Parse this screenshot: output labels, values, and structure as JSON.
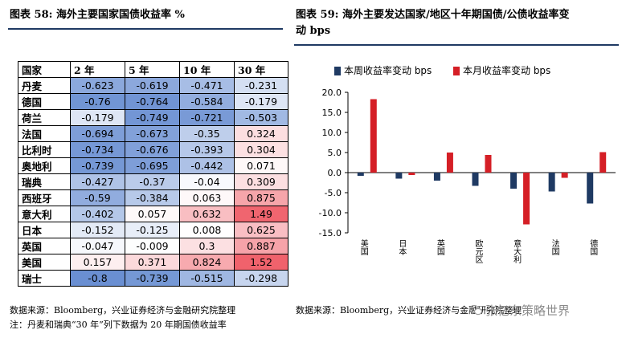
{
  "left_figure": {
    "title": "图表 58:  海外主要国家国债收益率  %",
    "source": "数据来源：Bloomberg，兴业证券经济与金融研究院整理",
    "note": "注：丹麦和瑞典“30 年”列下数据为 20 年期国债收益率"
  },
  "right_figure": {
    "title_line1": "图表 59:  海外主要发达国家/地区十年期国债/公债收益率变",
    "title_line2": "动  bps",
    "source": "数据来源：Bloomberg，兴业证券经济与金融研究院整理",
    "watermark": "张忆东策略世界"
  },
  "colors": {
    "negative_strong": "#6a8fd2",
    "positive_strong": "#f0626c",
    "series_week": "#1f3a63",
    "series_month": "#d51f26"
  },
  "table": {
    "headers": [
      "国家",
      "2 年",
      "5 年",
      "10 年",
      "30 年"
    ],
    "rows": [
      {
        "country": "丹麦",
        "values": [
          "-0.623",
          "-0.619",
          "-0.471",
          "-0.231"
        ],
        "nums": [
          -0.623,
          -0.619,
          -0.471,
          -0.231
        ]
      },
      {
        "country": "德国",
        "values": [
          "-0.76",
          "-0.764",
          "-0.584",
          "-0.179"
        ],
        "nums": [
          -0.76,
          -0.764,
          -0.584,
          -0.179
        ]
      },
      {
        "country": "荷兰",
        "values": [
          "-0.179",
          "-0.749",
          "-0.721",
          "-0.503"
        ],
        "nums": [
          -0.179,
          -0.749,
          -0.721,
          -0.503
        ]
      },
      {
        "country": "法国",
        "values": [
          "-0.694",
          "-0.673",
          "-0.35",
          "0.324"
        ],
        "nums": [
          -0.694,
          -0.673,
          -0.35,
          0.324
        ]
      },
      {
        "country": "比利时",
        "values": [
          "-0.734",
          "-0.676",
          "-0.393",
          "0.304"
        ],
        "nums": [
          -0.734,
          -0.676,
          -0.393,
          0.304
        ]
      },
      {
        "country": "奥地利",
        "values": [
          "-0.739",
          "-0.695",
          "-0.442",
          "0.071"
        ],
        "nums": [
          -0.739,
          -0.695,
          -0.442,
          0.071
        ]
      },
      {
        "country": "瑞典",
        "values": [
          "-0.427",
          "-0.37",
          "-0.04",
          "0.309"
        ],
        "nums": [
          -0.427,
          -0.37,
          -0.04,
          0.309
        ]
      },
      {
        "country": "西班牙",
        "values": [
          "-0.59",
          "-0.384",
          "0.063",
          "0.875"
        ],
        "nums": [
          -0.59,
          -0.384,
          0.063,
          0.875
        ]
      },
      {
        "country": "意大利",
        "values": [
          "-0.402",
          "0.057",
          "0.632",
          "1.49"
        ],
        "nums": [
          -0.402,
          0.057,
          0.632,
          1.49
        ]
      },
      {
        "country": "日本",
        "values": [
          "-0.152",
          "-0.125",
          "0.008",
          "0.625"
        ],
        "nums": [
          -0.152,
          -0.125,
          0.008,
          0.625
        ]
      },
      {
        "country": "英国",
        "values": [
          "-0.047",
          "-0.009",
          "0.3",
          "0.887"
        ],
        "nums": [
          -0.047,
          -0.009,
          0.3,
          0.887
        ]
      },
      {
        "country": "美国",
        "values": [
          "0.157",
          "0.371",
          "0.824",
          "1.52"
        ],
        "nums": [
          0.157,
          0.371,
          0.824,
          1.52
        ]
      },
      {
        "country": "瑞士",
        "values": [
          "-0.8",
          "-0.739",
          "-0.515",
          "-0.298"
        ],
        "nums": [
          -0.8,
          -0.739,
          -0.515,
          -0.298
        ]
      }
    ]
  },
  "chart_data": {
    "type": "bar",
    "categories": [
      "美国",
      "日本",
      "英国",
      "欧元区",
      "意大利",
      "法国",
      "德国"
    ],
    "series": [
      {
        "name": "本周收益率变动  bps",
        "values": [
          -0.8,
          -1.5,
          -2.0,
          -3.3,
          -4.0,
          -4.7,
          -7.7
        ]
      },
      {
        "name": "本月收益率变动  bps",
        "values": [
          18.3,
          -0.6,
          5.0,
          4.4,
          -12.9,
          -1.3,
          5.1
        ]
      }
    ],
    "ylim": [
      -15,
      20
    ],
    "yticks": [
      "-15.0",
      "-10.0",
      "-5.0",
      "0.0",
      "5.0",
      "10.0",
      "15.0",
      "20.0"
    ],
    "legend_position": "top"
  }
}
